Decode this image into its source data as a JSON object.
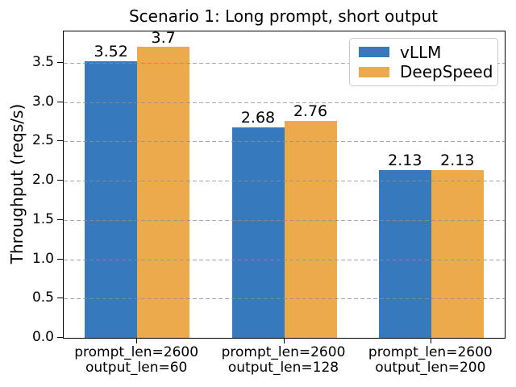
{
  "chart_data": {
    "type": "bar",
    "title": "Scenario 1: Long prompt, short output",
    "xlabel": "",
    "ylabel": "Throughput (reqs/s)",
    "categories": [
      "prompt_len=2600\noutput_len=60",
      "prompt_len=2600\noutput_len=128",
      "prompt_len=2600\noutput_len=200"
    ],
    "series": [
      {
        "name": "vLLM",
        "color": "#3679bd",
        "values": [
          3.52,
          2.68,
          2.13
        ]
      },
      {
        "name": "DeepSpeed",
        "color": "#edaa4a",
        "values": [
          3.7,
          2.76,
          2.13
        ]
      }
    ],
    "yticks": [
      0.0,
      0.5,
      1.0,
      1.5,
      2.0,
      2.5,
      3.0,
      3.5
    ],
    "ylim": [
      0,
      3.9
    ],
    "grid": "horizontal dashed, drawn over bars",
    "legend_position": "upper right",
    "bar_value_labels": true,
    "grid_color": "#8f8f8f",
    "axis_color": "#000000",
    "legend_border_color": "#c9c9c9"
  }
}
